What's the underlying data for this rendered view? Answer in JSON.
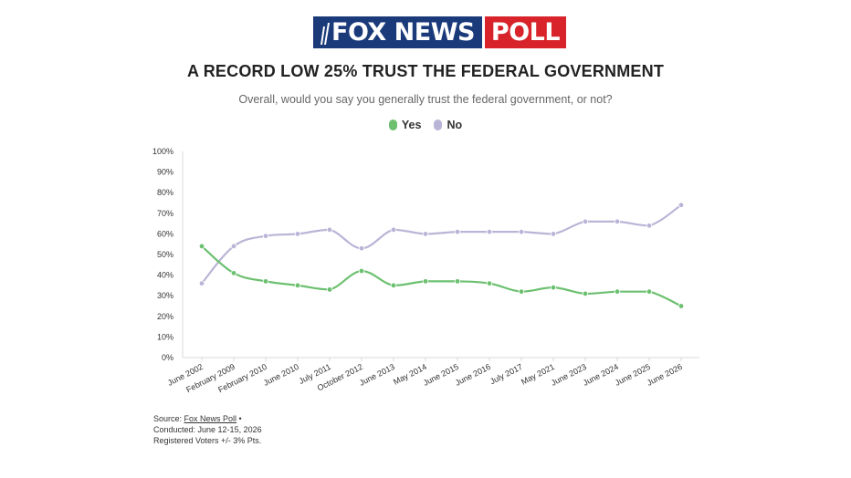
{
  "header": {
    "logo_fox": "FOX NEWS",
    "logo_poll": "POLL"
  },
  "chart_data": {
    "type": "line",
    "title": "A RECORD LOW 25% TRUST THE FEDERAL GOVERNMENT",
    "subtitle": "Overall, would you say you generally trust the federal government, or not?",
    "categories": [
      "June 2002",
      "February 2009",
      "February 2010",
      "June 2010",
      "July 2011",
      "October 2012",
      "June 2013",
      "May 2014",
      "June 2015",
      "June 2016",
      "July 2017",
      "May 2021",
      "June 2023",
      "June 2024",
      "June 2025",
      "June 2026"
    ],
    "series": [
      {
        "name": "Yes",
        "color": "#6cc070",
        "values": [
          54,
          41,
          37,
          35,
          33,
          42,
          35,
          37,
          37,
          36,
          32,
          34,
          31,
          32,
          32,
          25
        ]
      },
      {
        "name": "No",
        "color": "#b9b5d6",
        "values": [
          36,
          54,
          59,
          60,
          62,
          53,
          62,
          60,
          61,
          61,
          61,
          60,
          66,
          66,
          64,
          74
        ]
      }
    ],
    "yticks": [
      "0%",
      "10%",
      "20%",
      "30%",
      "40%",
      "50%",
      "60%",
      "70%",
      "80%",
      "90%",
      "100%"
    ],
    "ylim": [
      0,
      100
    ],
    "legend_position": "top-center",
    "grid": false
  },
  "footer": {
    "source_prefix": "Source: ",
    "source_link": "Fox News Poll",
    "source_suffix": " •",
    "conducted": "Conducted: June 12-15, 2026",
    "margin": "Registered Voters +/- 3% Pts."
  }
}
